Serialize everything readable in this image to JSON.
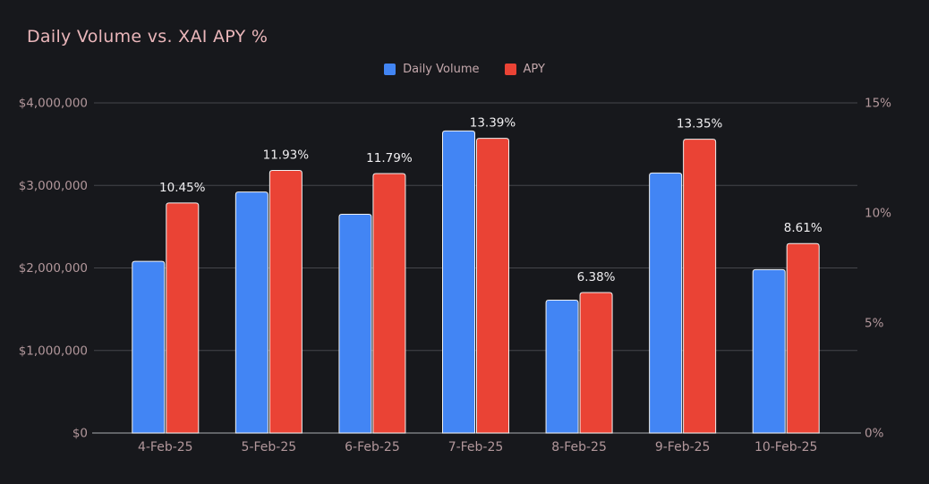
{
  "title": "Daily Volume vs. XAI APY %",
  "legend": [
    {
      "label": "Daily Volume",
      "color": "#4285f4"
    },
    {
      "label": "APY",
      "color": "#ea4335"
    }
  ],
  "colors": {
    "background": "#17181c",
    "title": "#eab6ba",
    "axis_label": "#b2979b",
    "data_label": "#f0eff1",
    "legend_text": "#c4a8ac",
    "gridline": "#45464b",
    "baseline": "#8d8e92",
    "bar_border": "#f1f1f1",
    "volume_bar": "#4285f4",
    "apy_bar": "#ea4335"
  },
  "chart_data": {
    "type": "bar",
    "title": "Daily Volume vs. XAI APY %",
    "categories": [
      "4-Feb-25",
      "5-Feb-25",
      "6-Feb-25",
      "7-Feb-25",
      "8-Feb-25",
      "9-Feb-25",
      "10-Feb-25"
    ],
    "series": [
      {
        "name": "Daily Volume",
        "axis": "left",
        "color": "#4285f4",
        "values": [
          2080000,
          2920000,
          2650000,
          3660000,
          1610000,
          3150000,
          1980000
        ]
      },
      {
        "name": "APY",
        "axis": "right",
        "color": "#ea4335",
        "values": [
          10.45,
          11.93,
          11.79,
          13.39,
          6.38,
          13.35,
          8.61
        ],
        "labels": [
          "10.45%",
          "11.93%",
          "11.79%",
          "13.39%",
          "6.38%",
          "13.35%",
          "8.61%"
        ]
      }
    ],
    "left_axis": {
      "label_format": "USD",
      "min": 0,
      "max": 4000000,
      "tick_values": [
        0,
        1000000,
        2000000,
        3000000,
        4000000
      ],
      "tick_labels": [
        "$0",
        "$1,000,000",
        "$2,000,000",
        "$3,000,000",
        "$4,000,000"
      ]
    },
    "right_axis": {
      "label_format": "percent",
      "min": 0,
      "max": 15,
      "tick_values": [
        0,
        5,
        10,
        15
      ],
      "tick_labels": [
        "0%",
        "5%",
        "10%",
        "15%"
      ]
    },
    "grid": true,
    "legend_position": "top-center"
  }
}
